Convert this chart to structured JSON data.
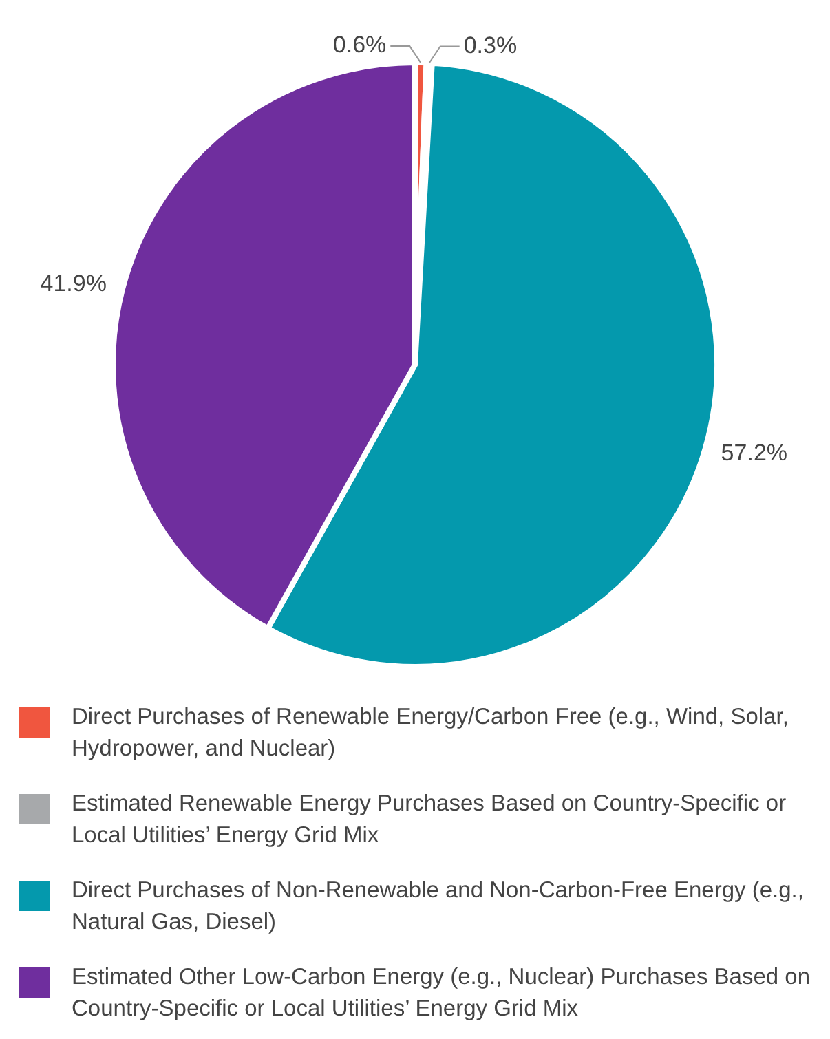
{
  "chart_data": {
    "type": "pie",
    "categories": [
      "Direct Purchases of Renewable Energy/Carbon Free (e.g., Wind, Solar, Hydropower, and Nuclear)",
      "Estimated Renewable Energy Purchases Based on Country-Specific or Local Utilities’ Energy Grid Mix",
      "Direct Purchases of Non-Renewable and Non-Carbon-Free Energy (e.g., Natural Gas, Diesel)",
      "Estimated Other Low-Carbon Energy (e.g., Nuclear) Purchases Based on Country-Specific or Local Utilities’ Energy Grid Mix"
    ],
    "values": [
      0.6,
      0.3,
      57.2,
      41.9
    ],
    "value_labels": [
      "0.6%",
      "0.3%",
      "57.2%",
      "41.9%"
    ],
    "colors": [
      "#f0563f",
      "#a7a9ab",
      "#0499ad",
      "#6f2e9e"
    ],
    "legend": "bottom"
  }
}
